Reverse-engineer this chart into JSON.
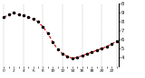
{
  "y_values": [
    85,
    88,
    90,
    88,
    87,
    85,
    83,
    80,
    74,
    67,
    57,
    49,
    44,
    41,
    39,
    40,
    42,
    44,
    46,
    48,
    50,
    52,
    55,
    58
  ],
  "ylim": [
    30,
    100
  ],
  "yticks": [
    40,
    50,
    60,
    70,
    80,
    90,
    100
  ],
  "ytick_labels": [
    "4",
    "5",
    "6",
    "7",
    "8",
    "9",
    "0"
  ],
  "line_color": "#cc0000",
  "marker_color": "#000000",
  "bg_color": "#ffffff",
  "plot_bg": "#ffffff",
  "grid_color": "#999999",
  "vgrid_positions": [
    0,
    4,
    8,
    12,
    16,
    20,
    23
  ],
  "xtick_step": 2,
  "ylabel_fontsize": 4.0,
  "xlabel_fontsize": 3.2,
  "right_spine_color": "#000000",
  "marker_size": 1.5,
  "line_width": 0.8
}
